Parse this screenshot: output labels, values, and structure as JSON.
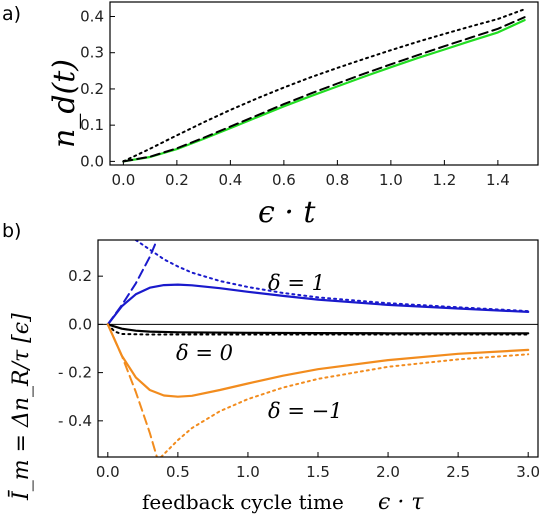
{
  "chart_data": [
    {
      "panel_label": "a)",
      "type": "line",
      "xlabel": "ϵ · t",
      "ylabel": "n_d(t)",
      "xlim": [
        -0.05,
        1.55
      ],
      "ylim": [
        -0.01,
        0.44
      ],
      "xticks": [
        "0.0",
        "0.2",
        "0.4",
        "0.6",
        "0.8",
        "1.0",
        "1.2",
        "1.4"
      ],
      "yticks": [
        "0.0",
        "0.1",
        "0.2",
        "0.3",
        "0.4"
      ],
      "series": [
        {
          "color": "#22dd22",
          "style": "solid",
          "x": [
            0,
            0.1,
            0.2,
            0.3,
            0.4,
            0.5,
            0.6,
            0.7,
            0.8,
            0.9,
            1.0,
            1.1,
            1.2,
            1.3,
            1.4,
            1.5
          ],
          "y": [
            0,
            0.012,
            0.034,
            0.062,
            0.092,
            0.122,
            0.152,
            0.18,
            0.207,
            0.234,
            0.26,
            0.285,
            0.309,
            0.333,
            0.356,
            0.39
          ]
        },
        {
          "color": "#000000",
          "style": "dashed",
          "x": [
            0,
            0.1,
            0.2,
            0.3,
            0.4,
            0.5,
            0.6,
            0.7,
            0.8,
            0.9,
            1.0,
            1.1,
            1.2,
            1.3,
            1.4,
            1.5
          ],
          "y": [
            0,
            0.013,
            0.036,
            0.065,
            0.096,
            0.127,
            0.158,
            0.187,
            0.215,
            0.242,
            0.268,
            0.293,
            0.318,
            0.342,
            0.366,
            0.398
          ]
        },
        {
          "color": "#000000",
          "style": "dotted",
          "x": [
            0,
            0.1,
            0.2,
            0.3,
            0.4,
            0.5,
            0.6,
            0.7,
            0.8,
            0.9,
            1.0,
            1.1,
            1.2,
            1.3,
            1.4,
            1.5
          ],
          "y": [
            0,
            0.035,
            0.072,
            0.108,
            0.142,
            0.174,
            0.204,
            0.232,
            0.258,
            0.283,
            0.307,
            0.33,
            0.352,
            0.373,
            0.393,
            0.42
          ]
        }
      ]
    },
    {
      "panel_label": "b)",
      "type": "line",
      "xlabel": "feedback cycle time",
      "xlabel_math": "ϵ · τ",
      "ylabel": "Ī_m = Δn_R/τ [ϵ]",
      "xlim": [
        -0.07,
        3.07
      ],
      "ylim": [
        -0.55,
        0.35
      ],
      "xticks": [
        "0.0",
        "0.5",
        "1.0",
        "1.5",
        "2.0",
        "2.5",
        "3.0"
      ],
      "yticks": [
        "0.2",
        "0.0",
        "- 0.2",
        "- 0.4"
      ],
      "annotations": [
        "δ = 1",
        "δ = 0",
        "δ = −1"
      ],
      "series": [
        {
          "color": "#1a1acc",
          "style": "solid",
          "x": [
            0,
            0.1,
            0.2,
            0.3,
            0.4,
            0.5,
            0.6,
            0.8,
            1.0,
            1.25,
            1.5,
            2.0,
            2.5,
            3.0
          ],
          "y": [
            0,
            0.075,
            0.125,
            0.152,
            0.163,
            0.165,
            0.162,
            0.15,
            0.135,
            0.118,
            0.103,
            0.081,
            0.066,
            0.052
          ]
        },
        {
          "color": "#1a1acc",
          "style": "dashed",
          "x": [
            0,
            0.1,
            0.2,
            0.3,
            0.35
          ],
          "y": [
            0,
            0.08,
            0.17,
            0.28,
            0.35
          ]
        },
        {
          "color": "#1a1acc",
          "style": "dotted",
          "x": [
            0.2,
            0.3,
            0.4,
            0.5,
            0.6,
            0.8,
            1.0,
            1.25,
            1.5,
            2.0,
            2.5,
            3.0
          ],
          "y": [
            0.35,
            0.31,
            0.27,
            0.24,
            0.215,
            0.18,
            0.155,
            0.13,
            0.112,
            0.088,
            0.071,
            0.055
          ]
        },
        {
          "color": "#000000",
          "style": "solid",
          "x": [
            0,
            0.1,
            0.2,
            0.3,
            0.5,
            1.0,
            1.5,
            2.0,
            2.5,
            3.0
          ],
          "y": [
            0,
            -0.018,
            -0.026,
            -0.03,
            -0.033,
            -0.035,
            -0.036,
            -0.037,
            -0.037,
            -0.037
          ]
        },
        {
          "color": "#000000",
          "style": "dotted",
          "x": [
            0,
            0.05,
            0.1,
            0.3,
            0.5,
            1.0,
            1.5,
            2.0,
            2.5,
            3.0
          ],
          "y": [
            0,
            -0.03,
            -0.04,
            -0.042,
            -0.042,
            -0.042,
            -0.042,
            -0.042,
            -0.042,
            -0.042
          ]
        },
        {
          "color": "#f28c1e",
          "style": "solid",
          "x": [
            0,
            0.1,
            0.2,
            0.3,
            0.4,
            0.5,
            0.6,
            0.8,
            1.0,
            1.25,
            1.5,
            2.0,
            2.5,
            3.0
          ],
          "y": [
            0,
            -0.13,
            -0.22,
            -0.272,
            -0.295,
            -0.3,
            -0.296,
            -0.272,
            -0.245,
            -0.213,
            -0.186,
            -0.148,
            -0.122,
            -0.106
          ]
        },
        {
          "color": "#f28c1e",
          "style": "dashed",
          "x": [
            0,
            0.1,
            0.2,
            0.3,
            0.35
          ],
          "y": [
            0,
            -0.13,
            -0.28,
            -0.45,
            -0.55
          ]
        },
        {
          "color": "#f28c1e",
          "style": "dotted",
          "x": [
            0.38,
            0.5,
            0.6,
            0.8,
            1.0,
            1.25,
            1.5,
            2.0,
            2.5,
            3.0
          ],
          "y": [
            -0.55,
            -0.48,
            -0.43,
            -0.36,
            -0.31,
            -0.262,
            -0.226,
            -0.176,
            -0.145,
            -0.124
          ]
        }
      ]
    }
  ]
}
